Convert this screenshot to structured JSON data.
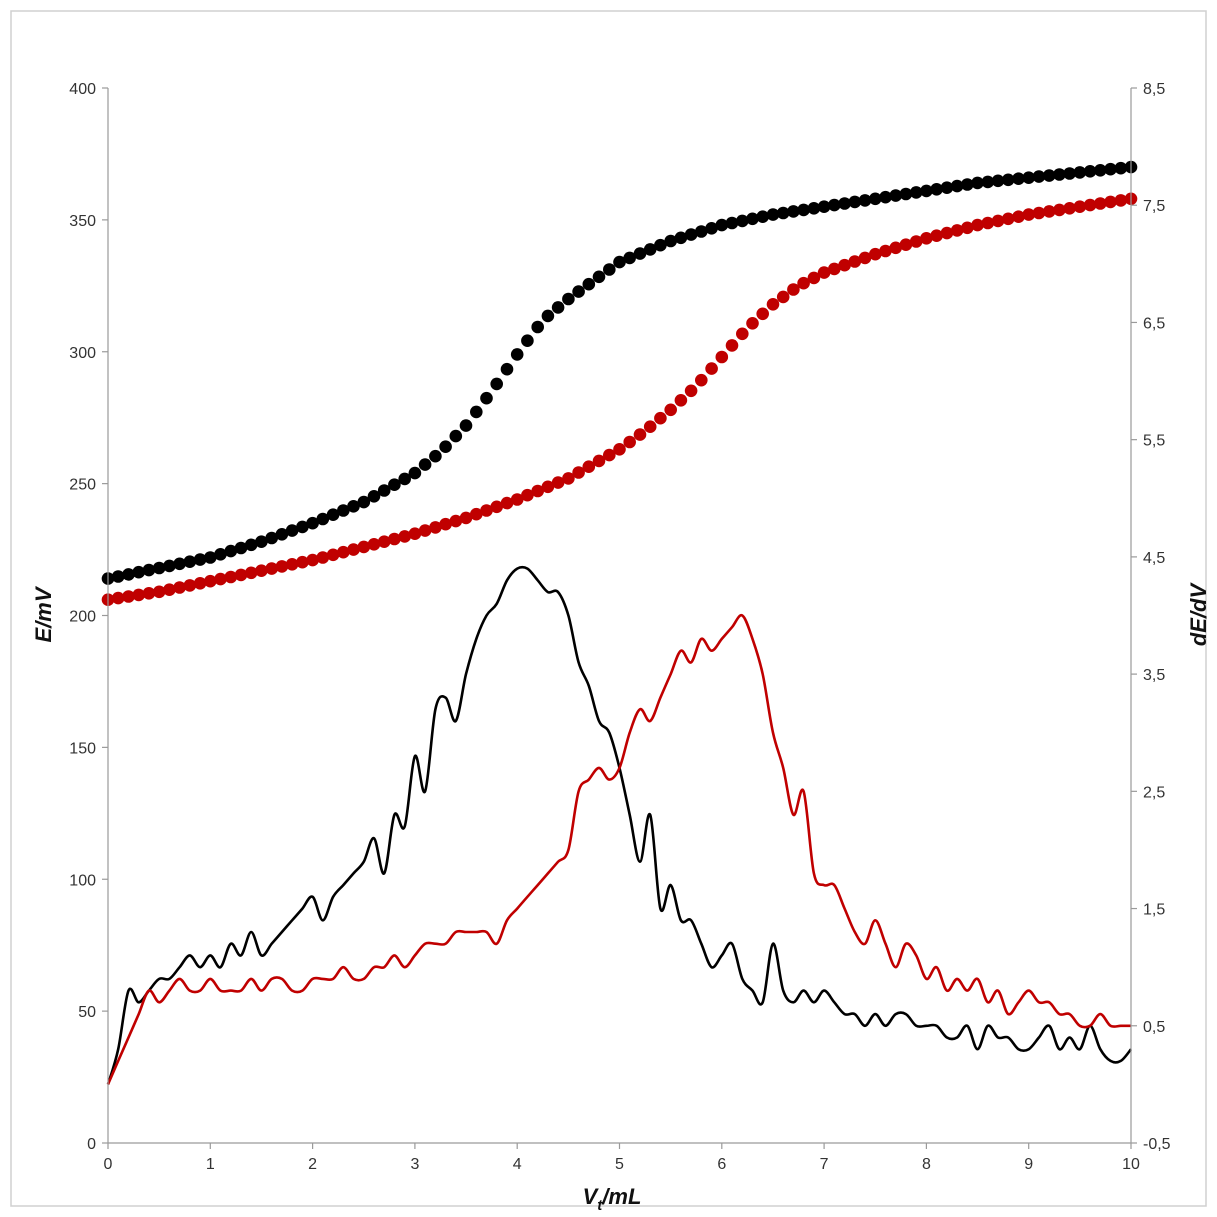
{
  "chart_data": {
    "type": "scatter",
    "xlabel": "Vt/mL",
    "xlabel_main": "V",
    "xlabel_sub": "t",
    "xlabel_rest": "/mL",
    "ylabel": "E/mV",
    "y2label": "dE/dV",
    "xlim": [
      0,
      10
    ],
    "ylim": [
      0,
      400
    ],
    "y2lim": [
      -0.5,
      8.5
    ],
    "x_ticks": [
      "0",
      "1",
      "2",
      "3",
      "4",
      "5",
      "6",
      "7",
      "8",
      "9",
      "10"
    ],
    "y_ticks": [
      "0",
      "50",
      "100",
      "150",
      "200",
      "250",
      "300",
      "350",
      "400"
    ],
    "y2_ticks": [
      "-0,5",
      "0,5",
      "1,5",
      "2,5",
      "3,5",
      "4,5",
      "5,5",
      "6,5",
      "7,5",
      "8,5"
    ],
    "grid": false,
    "legend": "none",
    "series": [
      {
        "kind": "points",
        "axis": "left",
        "color": "#000000",
        "x": [
          0.0,
          0.5,
          1.0,
          1.5,
          2.0,
          2.5,
          3.0,
          3.25,
          3.5,
          3.75,
          4.0,
          4.25,
          4.5,
          4.75,
          5.0,
          5.25,
          5.5,
          5.75,
          6.0,
          6.5,
          7.0,
          7.5,
          8.0,
          8.5,
          9.0,
          9.5,
          10.0
        ],
        "y": [
          214,
          218,
          222,
          228,
          235,
          243,
          254,
          262,
          272,
          285,
          299,
          312,
          320,
          327,
          334,
          338,
          342,
          345,
          348,
          352,
          355,
          358,
          361,
          364,
          366,
          368,
          370
        ]
      },
      {
        "kind": "points",
        "axis": "left",
        "color": "#c00000",
        "x": [
          0.0,
          0.5,
          1.0,
          1.5,
          2.0,
          2.5,
          3.0,
          3.5,
          4.0,
          4.5,
          5.0,
          5.25,
          5.5,
          5.75,
          6.0,
          6.25,
          6.5,
          6.75,
          7.0,
          7.5,
          8.0,
          8.5,
          9.0,
          9.5,
          10.0
        ],
        "y": [
          206,
          209,
          213,
          217,
          221,
          226,
          231,
          237,
          244,
          252,
          263,
          270,
          278,
          287,
          298,
          309,
          318,
          325,
          330,
          337,
          343,
          348,
          352,
          355,
          358
        ]
      },
      {
        "kind": "line",
        "axis": "right",
        "color": "#000000",
        "x": [
          0.0,
          0.1,
          0.2,
          0.3,
          0.4,
          0.5,
          0.6,
          0.7,
          0.8,
          0.9,
          1.0,
          1.1,
          1.2,
          1.3,
          1.4,
          1.5,
          1.6,
          1.7,
          1.8,
          1.9,
          2.0,
          2.1,
          2.2,
          2.3,
          2.4,
          2.5,
          2.6,
          2.7,
          2.8,
          2.9,
          3.0,
          3.1,
          3.2,
          3.3,
          3.4,
          3.5,
          3.6,
          3.7,
          3.8,
          3.9,
          4.0,
          4.1,
          4.2,
          4.3,
          4.4,
          4.5,
          4.6,
          4.7,
          4.8,
          4.9,
          5.0,
          5.1,
          5.2,
          5.3,
          5.4,
          5.5,
          5.6,
          5.7,
          5.8,
          5.9,
          6.0,
          6.1,
          6.2,
          6.3,
          6.4,
          6.5,
          6.6,
          6.7,
          6.8,
          6.9,
          7.0,
          7.1,
          7.2,
          7.3,
          7.4,
          7.5,
          7.6,
          7.7,
          7.8,
          7.9,
          8.0,
          8.1,
          8.2,
          8.3,
          8.4,
          8.5,
          8.6,
          8.7,
          8.8,
          8.9,
          9.0,
          9.1,
          9.2,
          9.3,
          9.4,
          9.5,
          9.6,
          9.7,
          9.8,
          9.9,
          10.0
        ],
        "y": [
          0.0,
          0.3,
          0.8,
          0.7,
          0.8,
          0.9,
          0.9,
          1.0,
          1.1,
          1.0,
          1.1,
          1.0,
          1.2,
          1.1,
          1.3,
          1.1,
          1.2,
          1.3,
          1.4,
          1.5,
          1.6,
          1.4,
          1.6,
          1.7,
          1.8,
          1.9,
          2.1,
          1.8,
          2.3,
          2.2,
          2.8,
          2.5,
          3.2,
          3.3,
          3.1,
          3.5,
          3.8,
          4.0,
          4.1,
          4.3,
          4.4,
          4.4,
          4.3,
          4.2,
          4.2,
          4.0,
          3.6,
          3.4,
          3.1,
          3.0,
          2.7,
          2.3,
          1.9,
          2.3,
          1.5,
          1.7,
          1.4,
          1.4,
          1.2,
          1.0,
          1.1,
          1.2,
          0.9,
          0.8,
          0.7,
          1.2,
          0.8,
          0.7,
          0.8,
          0.7,
          0.8,
          0.7,
          0.6,
          0.6,
          0.5,
          0.6,
          0.5,
          0.6,
          0.6,
          0.5,
          0.5,
          0.5,
          0.4,
          0.4,
          0.5,
          0.3,
          0.5,
          0.4,
          0.4,
          0.3,
          0.3,
          0.4,
          0.5,
          0.3,
          0.4,
          0.3,
          0.5,
          0.3,
          0.2,
          0.2,
          0.3
        ]
      },
      {
        "kind": "line",
        "axis": "right",
        "color": "#c00000",
        "x": [
          0.0,
          0.1,
          0.2,
          0.3,
          0.4,
          0.5,
          0.6,
          0.7,
          0.8,
          0.9,
          1.0,
          1.1,
          1.2,
          1.3,
          1.4,
          1.5,
          1.6,
          1.7,
          1.8,
          1.9,
          2.0,
          2.1,
          2.2,
          2.3,
          2.4,
          2.5,
          2.6,
          2.7,
          2.8,
          2.9,
          3.0,
          3.1,
          3.2,
          3.3,
          3.4,
          3.5,
          3.6,
          3.7,
          3.8,
          3.9,
          4.0,
          4.1,
          4.2,
          4.3,
          4.4,
          4.5,
          4.6,
          4.7,
          4.8,
          4.9,
          5.0,
          5.1,
          5.2,
          5.3,
          5.4,
          5.5,
          5.6,
          5.7,
          5.8,
          5.9,
          6.0,
          6.1,
          6.2,
          6.3,
          6.4,
          6.5,
          6.6,
          6.7,
          6.8,
          6.9,
          7.0,
          7.1,
          7.2,
          7.3,
          7.4,
          7.5,
          7.6,
          7.7,
          7.8,
          7.9,
          8.0,
          8.1,
          8.2,
          8.3,
          8.4,
          8.5,
          8.6,
          8.7,
          8.8,
          8.9,
          9.0,
          9.1,
          9.2,
          9.3,
          9.4,
          9.5,
          9.6,
          9.7,
          9.8,
          9.9,
          10.0
        ],
        "y": [
          0.0,
          0.2,
          0.4,
          0.6,
          0.8,
          0.7,
          0.8,
          0.9,
          0.8,
          0.8,
          0.9,
          0.8,
          0.8,
          0.8,
          0.9,
          0.8,
          0.9,
          0.9,
          0.8,
          0.8,
          0.9,
          0.9,
          0.9,
          1.0,
          0.9,
          0.9,
          1.0,
          1.0,
          1.1,
          1.0,
          1.1,
          1.2,
          1.2,
          1.2,
          1.3,
          1.3,
          1.3,
          1.3,
          1.2,
          1.4,
          1.5,
          1.6,
          1.7,
          1.8,
          1.9,
          2.0,
          2.5,
          2.6,
          2.7,
          2.6,
          2.7,
          3.0,
          3.2,
          3.1,
          3.3,
          3.5,
          3.7,
          3.6,
          3.8,
          3.7,
          3.8,
          3.9,
          4.0,
          3.8,
          3.5,
          3.0,
          2.7,
          2.3,
          2.5,
          1.8,
          1.7,
          1.7,
          1.5,
          1.3,
          1.2,
          1.4,
          1.2,
          1.0,
          1.2,
          1.1,
          0.9,
          1.0,
          0.8,
          0.9,
          0.8,
          0.9,
          0.7,
          0.8,
          0.6,
          0.7,
          0.8,
          0.7,
          0.7,
          0.6,
          0.6,
          0.5,
          0.5,
          0.6,
          0.5,
          0.5,
          0.5
        ]
      }
    ]
  }
}
